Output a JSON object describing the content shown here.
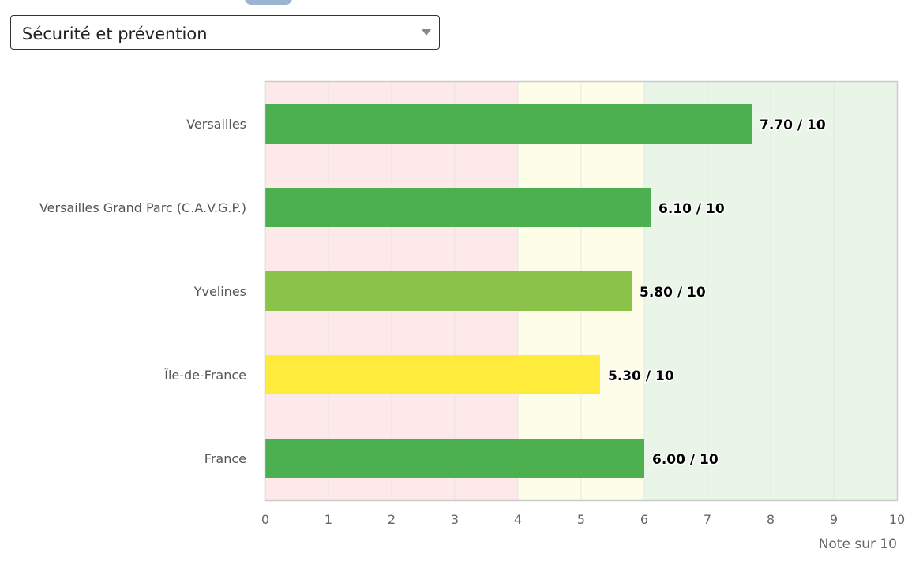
{
  "selector": {
    "value": "Sécurité et prévention"
  },
  "colors": {
    "band_low": "#fde8ea",
    "band_mid": "#fefde8",
    "band_high": "#e8f5e7",
    "bar_high": "#4caf50",
    "bar_mid_high": "#8bc34a",
    "bar_mid": "#ffeb3b",
    "grid": "#e6e6e6",
    "plot_border": "#cccccc"
  },
  "chart_data": {
    "type": "bar",
    "orientation": "horizontal",
    "categories": [
      "Versailles",
      "Versailles Grand Parc (C.A.V.G.P.)",
      "Yvelines",
      "Île-de-France",
      "France"
    ],
    "values": [
      7.7,
      6.1,
      5.8,
      5.3,
      6.0
    ],
    "data_labels": [
      "7.70 / 10",
      "6.10 / 10",
      "5.80 / 10",
      "5.30 / 10",
      "6.00 / 10"
    ],
    "bar_colors": [
      "#4caf50",
      "#4caf50",
      "#8bc34a",
      "#ffeb3b",
      "#4caf50"
    ],
    "xlim": [
      0,
      10
    ],
    "xticks": [
      "0",
      "1",
      "2",
      "3",
      "4",
      "5",
      "6",
      "7",
      "8",
      "9",
      "10"
    ],
    "xlabel": "Note sur 10",
    "bands": [
      {
        "from": 0,
        "to": 4,
        "color": "#fde8ea"
      },
      {
        "from": 4,
        "to": 6,
        "color": "#fefde8"
      },
      {
        "from": 6,
        "to": 10,
        "color": "#e8f5e7"
      }
    ],
    "grid": true,
    "legend": "none"
  }
}
